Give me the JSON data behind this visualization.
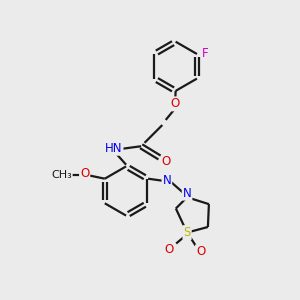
{
  "background_color": "#ebebeb",
  "bond_color": "#1a1a1a",
  "atom_colors": {
    "N": "#0000ee",
    "O": "#dd0000",
    "F": "#cc00cc",
    "S": "#bbbb00",
    "C": "#1a1a1a",
    "H": "#7a7a7a"
  },
  "figsize": [
    3.0,
    3.0
  ],
  "dpi": 100,
  "lw": 1.6,
  "fs": 8.5
}
